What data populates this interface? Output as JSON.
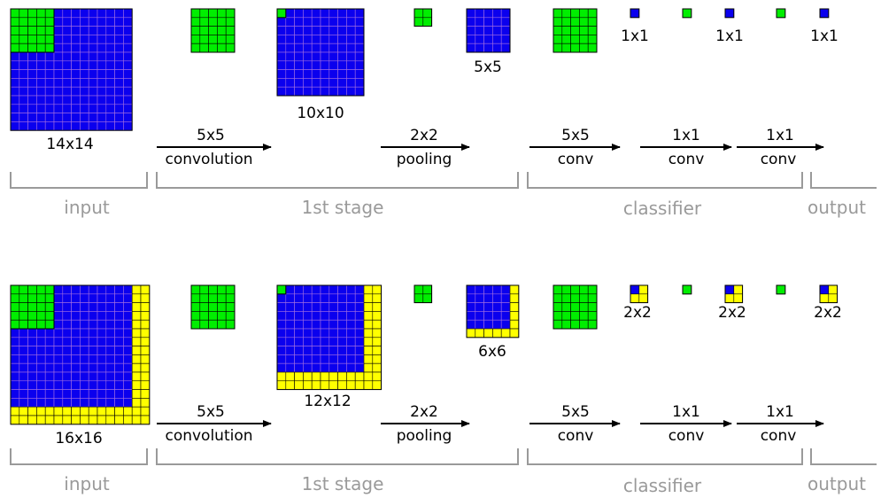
{
  "colors": {
    "blue": "#0b00ee",
    "green": "#00ee00",
    "yellow": "#ffff00",
    "grid_blue": "#a36fe0",
    "grid_green": "#000000",
    "grid_yellow": "#000000",
    "bracket": "#9a9a9a",
    "section_text": "#9a9a9a"
  },
  "rows": [
    {
      "sizes": {
        "input": "14x14",
        "conv_out": "10x10",
        "pool_out": "5x5",
        "cls_1": "1x1",
        "cls_2": "1x1",
        "cls_3": "1x1"
      },
      "ops": {
        "conv1_top": "5x5",
        "conv1_bot": "convolution",
        "pool_top": "2x2",
        "pool_bot": "pooling",
        "conv2_top": "5x5",
        "conv2_bot": "conv",
        "conv3_top": "1x1",
        "conv3_bot": "conv",
        "conv4_top": "1x1",
        "conv4_bot": "conv"
      },
      "sections": {
        "input": "input",
        "stage": "1st stage",
        "classifier": "classifier",
        "output": "output"
      }
    },
    {
      "sizes": {
        "input": "16x16",
        "conv_out": "12x12",
        "pool_out": "6x6",
        "cls_1": "2x2",
        "cls_2": "2x2",
        "cls_3": "2x2"
      },
      "ops": {
        "conv1_top": "5x5",
        "conv1_bot": "convolution",
        "pool_top": "2x2",
        "pool_bot": "pooling",
        "conv2_top": "5x5",
        "conv2_bot": "conv",
        "conv3_top": "1x1",
        "conv3_bot": "conv",
        "conv4_top": "1x1",
        "conv4_bot": "conv"
      },
      "sections": {
        "input": "input",
        "stage": "1st stage",
        "classifier": "classifier",
        "output": "output"
      }
    }
  ]
}
